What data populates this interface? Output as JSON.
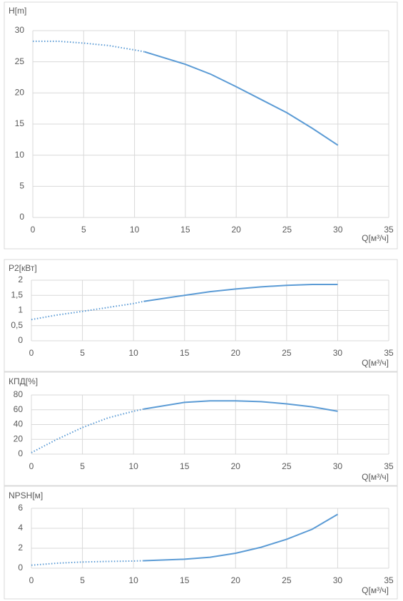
{
  "chart_data": [
    {
      "type": "line",
      "title": "H[m]",
      "x_label": "Q[м³/ч]",
      "grid": true,
      "x": [
        0,
        2.5,
        5,
        7.5,
        10,
        11,
        15,
        17.5,
        20,
        22.5,
        25,
        27.5,
        30
      ],
      "series": [
        {
          "color": "#5b9bd5",
          "line_style": "dotted",
          "values": [
            28.3,
            28.3,
            28.0,
            27.6,
            26.9,
            26.6,
            null,
            null,
            null,
            null,
            null,
            null,
            null
          ]
        },
        {
          "color": "#5b9bd5",
          "line_style": "solid",
          "values": [
            null,
            null,
            null,
            null,
            null,
            26.6,
            24.6,
            23.0,
            21.0,
            18.9,
            16.8,
            14.3,
            11.6
          ]
        }
      ],
      "xlim": [
        0,
        35
      ],
      "xticks": [
        0,
        5,
        10,
        15,
        20,
        25,
        30,
        35
      ],
      "ylim": [
        0,
        30
      ],
      "yticks": [
        0,
        5,
        10,
        15,
        20,
        25,
        30
      ]
    },
    {
      "type": "line",
      "title": "P2[кВт]",
      "x_label": "Q[м³/ч]",
      "grid": true,
      "x": [
        0,
        2.5,
        5,
        7.5,
        10,
        11,
        15,
        17.5,
        20,
        22.5,
        25,
        27.5,
        30
      ],
      "series": [
        {
          "color": "#5b9bd5",
          "line_style": "dotted",
          "values": [
            0.7,
            0.85,
            0.97,
            1.1,
            1.23,
            1.3,
            null,
            null,
            null,
            null,
            null,
            null,
            null
          ]
        },
        {
          "color": "#5b9bd5",
          "line_style": "solid",
          "values": [
            null,
            null,
            null,
            null,
            null,
            1.3,
            1.5,
            1.62,
            1.71,
            1.78,
            1.83,
            1.86,
            1.86
          ]
        }
      ],
      "xlim": [
        0,
        35
      ],
      "xticks": [
        0,
        5,
        10,
        15,
        20,
        25,
        30,
        35
      ],
      "ylim": [
        0,
        2
      ],
      "yticks": [
        0,
        {
          "value": 0.5,
          "label": "0,5"
        },
        1,
        {
          "value": 1.5,
          "label": "1,5"
        },
        2
      ]
    },
    {
      "type": "line",
      "title": "КПД[%]",
      "x_label": "Q[м³/ч]",
      "grid": true,
      "x": [
        0,
        2.5,
        5,
        7.5,
        10,
        11,
        15,
        17.5,
        20,
        22.5,
        25,
        27.5,
        30
      ],
      "series": [
        {
          "color": "#5b9bd5",
          "line_style": "dotted",
          "values": [
            2,
            20,
            36,
            49,
            58,
            61,
            null,
            null,
            null,
            null,
            null,
            null,
            null
          ]
        },
        {
          "color": "#5b9bd5",
          "line_style": "solid",
          "values": [
            null,
            null,
            null,
            null,
            null,
            61,
            70,
            72,
            72,
            71,
            68,
            64,
            58
          ]
        }
      ],
      "xlim": [
        0,
        35
      ],
      "xticks": [
        0,
        5,
        10,
        15,
        20,
        25,
        30,
        35
      ],
      "ylim": [
        0,
        80
      ],
      "yticks": [
        0,
        20,
        40,
        60,
        80
      ]
    },
    {
      "type": "line",
      "title": "NPSH[м]",
      "x_label": "Q[м³/ч]",
      "grid": true,
      "x": [
        0,
        2.5,
        5,
        7.5,
        10,
        11,
        15,
        17.5,
        20,
        22.5,
        25,
        27.5,
        30
      ],
      "series": [
        {
          "color": "#5b9bd5",
          "line_style": "dotted",
          "values": [
            0.3,
            0.5,
            0.62,
            0.68,
            0.72,
            0.75,
            null,
            null,
            null,
            null,
            null,
            null,
            null
          ]
        },
        {
          "color": "#5b9bd5",
          "line_style": "solid",
          "values": [
            null,
            null,
            null,
            null,
            null,
            0.75,
            0.9,
            1.1,
            1.5,
            2.1,
            2.9,
            3.9,
            5.4
          ]
        }
      ],
      "xlim": [
        0,
        35
      ],
      "xticks": [
        0,
        5,
        10,
        15,
        20,
        25,
        30,
        35
      ],
      "ylim": [
        0,
        6
      ],
      "yticks": [
        0,
        2,
        4,
        6
      ]
    }
  ]
}
